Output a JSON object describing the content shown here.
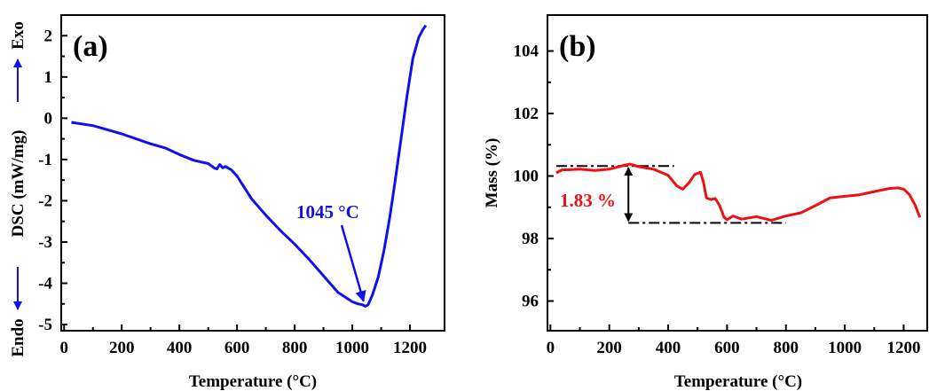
{
  "chart_data": [
    {
      "type": "line",
      "panel_label": "(a)",
      "xlabel": "Temperature (°C)",
      "ylabel": {
        "endo": "Endo",
        "middle": "DSC (mW/mg)",
        "exo": "Exo"
      },
      "xlim": [
        -10,
        1320
      ],
      "ylim": [
        -5.15,
        2.5
      ],
      "x_ticks": [
        0,
        200,
        400,
        600,
        800,
        1000,
        1200
      ],
      "y_ticks": [
        -5,
        -4,
        -3,
        -2,
        -1,
        0,
        1,
        2
      ],
      "grid": false,
      "color": "#1010ee",
      "series": [
        {
          "x": [
            25,
            100,
            200,
            300,
            350,
            400,
            450,
            500,
            520,
            530,
            540,
            550,
            560,
            580,
            600,
            620,
            650,
            700,
            750,
            800,
            850,
            900,
            950,
            1000,
            1020,
            1035,
            1045,
            1055,
            1070,
            1090,
            1110,
            1130,
            1150,
            1170,
            1190,
            1210,
            1230,
            1245,
            1255
          ],
          "y": [
            -0.1,
            -0.18,
            -0.38,
            -0.62,
            -0.72,
            -0.88,
            -1.02,
            -1.1,
            -1.2,
            -1.23,
            -1.12,
            -1.2,
            -1.17,
            -1.25,
            -1.4,
            -1.62,
            -1.95,
            -2.35,
            -2.72,
            -3.05,
            -3.42,
            -3.82,
            -4.22,
            -4.45,
            -4.5,
            -4.52,
            -4.56,
            -4.52,
            -4.28,
            -3.85,
            -3.2,
            -2.4,
            -1.45,
            -0.45,
            0.55,
            1.45,
            1.95,
            2.15,
            2.25
          ]
        }
      ],
      "annotations": [
        {
          "text": "1045 °C",
          "x": 1045,
          "y": -4.56,
          "color": "#1010ee"
        }
      ]
    },
    {
      "type": "line",
      "panel_label": "(b)",
      "xlabel": "Temperature (°C)",
      "ylabel": "Mass (%)",
      "xlim": [
        -10,
        1280
      ],
      "ylim": [
        95.05,
        105.15
      ],
      "x_ticks": [
        0,
        200,
        400,
        600,
        800,
        1000,
        1200
      ],
      "y_ticks": [
        96,
        98,
        100,
        102,
        104
      ],
      "grid": false,
      "color": "#ee1010",
      "series": [
        {
          "x": [
            20,
            40,
            60,
            100,
            150,
            200,
            250,
            270,
            300,
            350,
            400,
            430,
            450,
            470,
            490,
            510,
            520,
            530,
            545,
            560,
            575,
            590,
            600,
            620,
            650,
            700,
            750,
            800,
            850,
            900,
            950,
            1000,
            1050,
            1100,
            1150,
            1180,
            1200,
            1220,
            1240,
            1255
          ],
          "y": [
            100.1,
            100.2,
            100.2,
            100.22,
            100.18,
            100.22,
            100.34,
            100.38,
            100.3,
            100.22,
            100.02,
            99.68,
            99.58,
            99.78,
            100.05,
            100.12,
            99.8,
            99.3,
            99.25,
            99.28,
            99.05,
            98.68,
            98.6,
            98.72,
            98.62,
            98.7,
            98.58,
            98.72,
            98.82,
            99.05,
            99.3,
            99.35,
            99.4,
            99.5,
            99.6,
            99.62,
            99.58,
            99.4,
            99.05,
            98.68
          ]
        }
      ],
      "annotations": [
        {
          "text": "1.83 %",
          "color": "#ee1010"
        }
      ],
      "reference_lines": [
        {
          "y": 100.32,
          "x_from": 20,
          "x_to": 420
        },
        {
          "y": 98.5,
          "x_from": 265,
          "x_to": 800
        }
      ],
      "difference_arrow": {
        "x": 265,
        "y_top": 100.32,
        "y_bottom": 98.5
      }
    }
  ]
}
